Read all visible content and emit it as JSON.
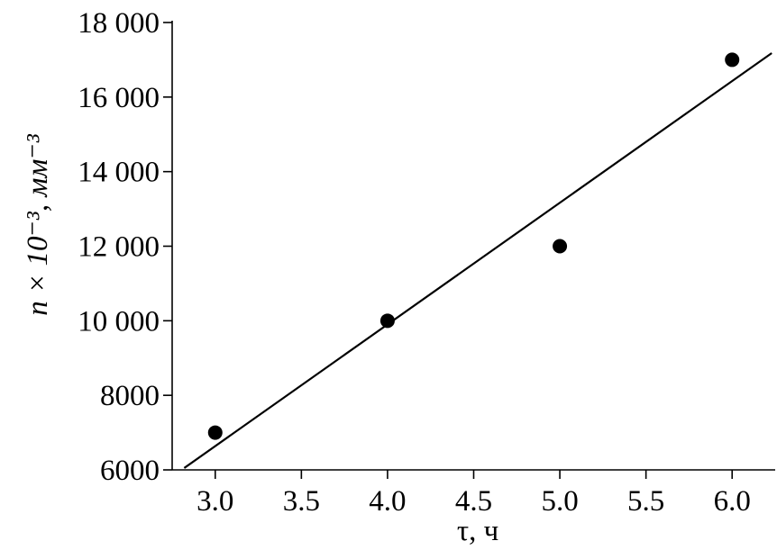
{
  "chart_data": {
    "type": "scatter",
    "x_label": "τ, ч",
    "y_label": "n × 10⁻³, мм⁻³",
    "x": [
      3.0,
      4.0,
      5.0,
      6.0
    ],
    "values": [
      7000,
      10000,
      12000,
      17000
    ],
    "color": "#000000",
    "fit": {
      "x": [
        2.82,
        6.23
      ],
      "values": [
        6050,
        17180
      ]
    },
    "xlim": [
      2.75,
      6.25
    ],
    "ylim": [
      6000,
      18000
    ],
    "xticks": [
      {
        "value": 3,
        "label": "3.0"
      },
      3.5,
      {
        "value": 4,
        "label": "4.0"
      },
      4.5,
      {
        "value": 5,
        "label": "5.0"
      },
      5.5,
      {
        "value": 6,
        "label": "6.0"
      }
    ],
    "yticks": [
      6000,
      8000,
      {
        "value": 10000,
        "label": "10 000"
      },
      {
        "value": 12000,
        "label": "12 000"
      },
      {
        "value": 14000,
        "label": "14 000"
      },
      {
        "value": 16000,
        "label": "16 000"
      },
      {
        "value": 18000,
        "label": "18 000"
      }
    ],
    "grid": false
  }
}
